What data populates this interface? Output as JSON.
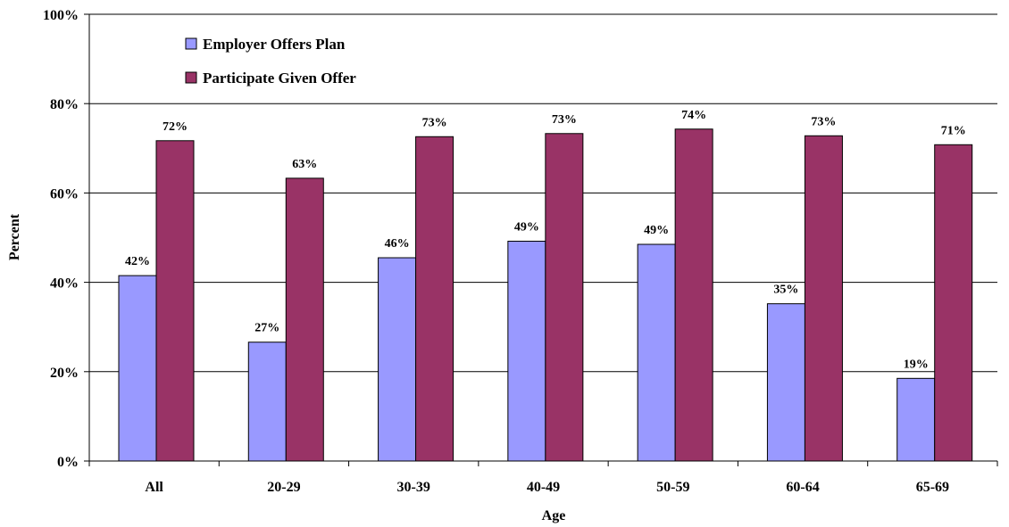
{
  "chart_data": {
    "type": "bar",
    "title": "",
    "xlabel": "Age",
    "ylabel": "Percent",
    "categories": [
      "All",
      "20-29",
      "30-39",
      "40-49",
      "50-59",
      "60-64",
      "65-69"
    ],
    "series": [
      {
        "name": "Employer Offers Plan",
        "color": "#9999ff",
        "values": [
          41.5,
          26.6,
          45.5,
          49.2,
          48.5,
          35.2,
          18.5
        ],
        "labels": [
          "42%",
          "27%",
          "46%",
          "49%",
          "49%",
          "35%",
          "19%"
        ]
      },
      {
        "name": "Participate Given Offer",
        "color": "#993366",
        "values": [
          71.7,
          63.3,
          72.6,
          73.3,
          74.3,
          72.8,
          70.8
        ],
        "labels": [
          "72%",
          "63%",
          "73%",
          "73%",
          "74%",
          "73%",
          "71%"
        ]
      }
    ],
    "ylim": [
      0,
      100
    ],
    "yticks": [
      0,
      20,
      40,
      60,
      80,
      100
    ],
    "ytick_labels": [
      "0%",
      "20%",
      "40%",
      "60%",
      "80%",
      "100%"
    ],
    "grid": true,
    "legend_position": "top-left"
  }
}
